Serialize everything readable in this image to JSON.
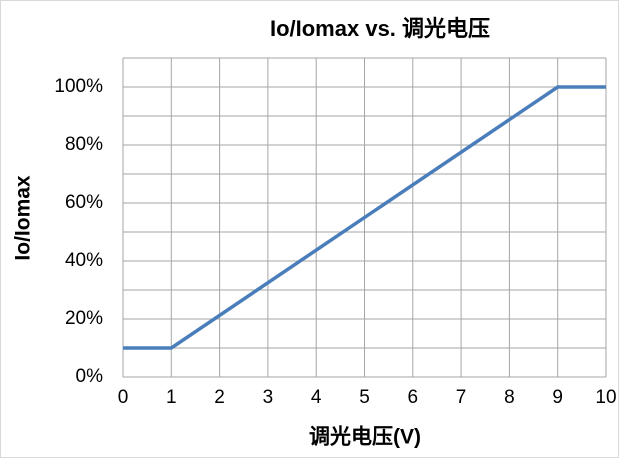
{
  "chart_data": {
    "type": "line",
    "title": "Io/Iomax vs. 调光电压",
    "x_label": "调光电压(V)",
    "y_label": "Io/Iomax",
    "x": [
      0,
      1,
      9,
      10
    ],
    "series": [
      {
        "name": "Io/Iomax",
        "color": "#4a7ebb",
        "values": [
          10,
          10,
          100,
          100
        ]
      }
    ],
    "xlim": [
      0,
      10
    ],
    "xticks": [
      0,
      1,
      2,
      3,
      4,
      5,
      6,
      7,
      8,
      9,
      10
    ],
    "ylim": [
      0,
      110
    ],
    "yticks": [
      {
        "value": 0,
        "label": "0%"
      },
      {
        "value": 20,
        "label": "20%"
      },
      {
        "value": 40,
        "label": "40%"
      },
      {
        "value": 60,
        "label": "60%"
      },
      {
        "value": 80,
        "label": "80%"
      },
      {
        "value": 100,
        "label": "100%"
      }
    ],
    "minor_yticks": [
      10,
      30,
      50,
      70,
      90,
      110
    ],
    "grid": true
  }
}
